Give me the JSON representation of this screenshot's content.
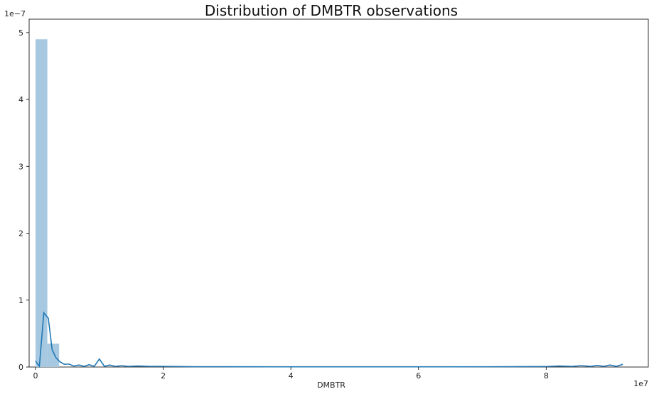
{
  "chart_data": {
    "type": "bar",
    "title": "Distribution of DMBTR observations",
    "xlabel": "DMBTR",
    "ylabel": "",
    "x_offset_label": "1e7",
    "y_offset_label": "1e−7",
    "xlim": [
      -1000000,
      96000000
    ],
    "ylim": [
      0,
      5.2e-07
    ],
    "x_ticks": [
      0,
      20000000,
      40000000,
      60000000,
      80000000
    ],
    "x_tick_labels": [
      "0",
      "2",
      "4",
      "6",
      "8"
    ],
    "y_ticks": [
      0,
      1e-07,
      2e-07,
      3e-07,
      4e-07,
      5e-07
    ],
    "y_tick_labels": [
      "0",
      "1",
      "2",
      "3",
      "4",
      "5"
    ],
    "grid": false,
    "histogram": {
      "bin_width": 1850000,
      "bins": [
        {
          "x0": 0,
          "x1": 1850000,
          "value": 4.9e-07
        },
        {
          "x0": 1850000,
          "x1": 3700000,
          "value": 3.5e-08
        }
      ],
      "color": "#a6c8e0"
    },
    "kde": {
      "color": "#1f77b4",
      "x": [
        0,
        600000,
        1300000,
        2000000,
        2600000,
        3200000,
        3800000,
        4500000,
        5200000,
        6000000,
        6800000,
        7600000,
        8400000,
        9200000,
        10000000,
        10800000,
        11600000,
        12500000,
        13500000,
        14500000,
        16000000,
        18000000,
        20000000,
        25000000,
        30000000,
        40000000,
        50000000,
        60000000,
        70000000,
        80000000,
        82000000,
        84000000,
        85500000,
        87000000,
        88000000,
        89000000,
        90000000,
        91000000,
        92000000
      ],
      "y": [
        9e-09,
        1e-09,
        8.1e-08,
        7.3e-08,
        2.6e-08,
        1.4e-08,
        8e-09,
        4e-09,
        4.5e-09,
        1.5e-09,
        3e-09,
        1e-09,
        3.5e-09,
        1e-09,
        1.2e-08,
        1e-09,
        3e-09,
        1e-09,
        2e-09,
        1e-09,
        1.5e-09,
        1e-09,
        1e-09,
        5e-10,
        5e-10,
        3e-10,
        3e-10,
        3e-10,
        4e-10,
        8e-10,
        1.5e-09,
        1e-09,
        2e-09,
        1e-09,
        2.5e-09,
        1e-09,
        3e-09,
        1e-09,
        4e-09
      ]
    }
  }
}
